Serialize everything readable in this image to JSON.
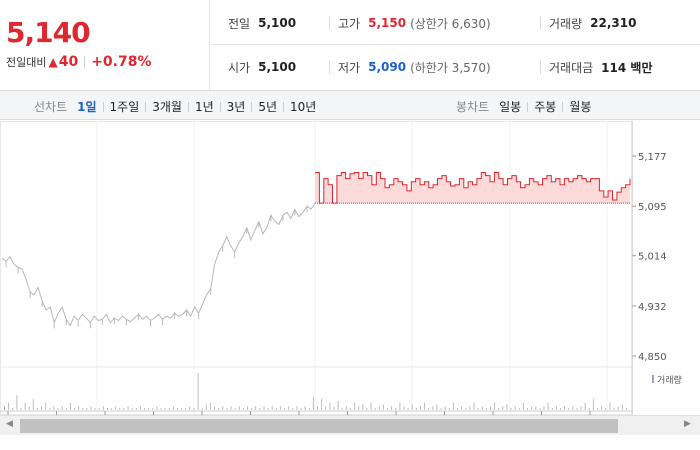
{
  "quote": {
    "price": "5,140",
    "change_label": "전일대비",
    "change_arrow": "▲",
    "change_amount": "40",
    "change_rate": "+0.78%"
  },
  "stats": {
    "prev_close": {
      "label": "전일",
      "value": "5,100"
    },
    "high": {
      "label": "고가",
      "value": "5,150",
      "extra": "(상한가 6,630)"
    },
    "volume": {
      "label": "거래량",
      "value": "22,310"
    },
    "open": {
      "label": "시가",
      "value": "5,100"
    },
    "low": {
      "label": "저가",
      "value": "5,090",
      "extra": "(하한가 3,570)"
    },
    "amount": {
      "label": "거래대금",
      "value": "114 백만"
    }
  },
  "toolbar": {
    "line_title": "선차트",
    "line_items": [
      "1일",
      "1주일",
      "3개월",
      "1년",
      "3년",
      "5년",
      "10년"
    ],
    "active_index": 0,
    "candle_title": "봉차트",
    "candle_items": [
      "일봉",
      "주봉",
      "월봉"
    ]
  },
  "colors": {
    "up": "#e0262f",
    "down": "#1963c7",
    "line_gray": "#b8b8b8",
    "fill_up": "#fbdada",
    "volume": "#a89bd0"
  },
  "chart_data": {
    "type": "line",
    "ylim": [
      4850,
      5177
    ],
    "y_ticks": [
      "5,177",
      "5,095",
      "5,014",
      "4,932",
      "4,850"
    ],
    "y_tick_values": [
      5177,
      5095,
      5014,
      4932,
      4850
    ],
    "base_price": 5100,
    "volume_legend": "거래량",
    "series_before_open": [
      5010,
      5005,
      5012,
      5000,
      4995,
      4992,
      4975,
      4955,
      4950,
      4962,
      4940,
      4925,
      4930,
      4905,
      4920,
      4930,
      4910,
      4900,
      4915,
      4908,
      4918,
      4912,
      4905,
      4915,
      4908,
      4910,
      4918,
      4905,
      4912,
      4908,
      4915,
      4910,
      4906,
      4912,
      4918,
      4910,
      4915,
      4908,
      4912,
      4918,
      4910,
      4915,
      4912,
      4920,
      4915,
      4918,
      4925,
      4915,
      4930,
      4920,
      4935,
      4950,
      4960,
      5000,
      5020,
      5030,
      5045,
      5030,
      5020,
      5035,
      5045,
      5060,
      5040,
      5055,
      5070,
      5050,
      5060,
      5080,
      5070,
      5065,
      5080,
      5085,
      5075,
      5090,
      5078,
      5085,
      5095,
      5090,
      5100
    ],
    "series_after_open": [
      5150,
      5100,
      5140,
      5130,
      5100,
      5145,
      5150,
      5140,
      5148,
      5150,
      5140,
      5150,
      5145,
      5130,
      5150,
      5140,
      5125,
      5130,
      5140,
      5135,
      5130,
      5120,
      5135,
      5140,
      5130,
      5135,
      5125,
      5130,
      5140,
      5145,
      5135,
      5128,
      5130,
      5140,
      5125,
      5135,
      5130,
      5140,
      5150,
      5145,
      5135,
      5150,
      5140,
      5130,
      5140,
      5145,
      5135,
      5125,
      5130,
      5140,
      5135,
      5130,
      5140,
      5145,
      5135,
      5140,
      5130,
      5140,
      5135,
      5140,
      5145,
      5140,
      5135,
      5140,
      5140,
      5120,
      5110,
      5120,
      5105,
      5118,
      5125,
      5130,
      5140
    ],
    "volume_rel": [
      0.1,
      0.2,
      0.05,
      0.4,
      0.05,
      0.2,
      0.1,
      0.3,
      0.05,
      0.1,
      0.2,
      0.05,
      0.1,
      0.05,
      0.1,
      0.05,
      0.2,
      0.05,
      0.1,
      0.05,
      0.05,
      0.1,
      0.05,
      0.05,
      0.1,
      0.05,
      0.05,
      0.1,
      0.05,
      0.05,
      0.1,
      0.05,
      0.05,
      0.1,
      0.05,
      0.05,
      0.05,
      0.1,
      0.05,
      0.05,
      0.05,
      0.1,
      0.05,
      0.05,
      0.05,
      0.1,
      0.05,
      1.0,
      0.05,
      0.15,
      0.2,
      0.1,
      0.05,
      0.1,
      0.05,
      0.1,
      0.05,
      0.1,
      0.05,
      0.1,
      0.05,
      0.1,
      0.05,
      0.1,
      0.05,
      0.1,
      0.05,
      0.1,
      0.05,
      0.1,
      0.05,
      0.1,
      0.05,
      0.1,
      0.05,
      0.35,
      0.1,
      0.3,
      0.1,
      0.2,
      0.1,
      0.25,
      0.05,
      0.1,
      0.05,
      0.2,
      0.1,
      0.15,
      0.05,
      0.2,
      0.05,
      0.1,
      0.15,
      0.05,
      0.1,
      0.05,
      0.2,
      0.1,
      0.05,
      0.15,
      0.05,
      0.1,
      0.2,
      0.05,
      0.1,
      0.15,
      0.05,
      0.1,
      0.05,
      0.2,
      0.05,
      0.1,
      0.05,
      0.1,
      0.2,
      0.05,
      0.1,
      0.05,
      0.1,
      0.2,
      0.05,
      0.1,
      0.15,
      0.05,
      0.1,
      0.05,
      0.2,
      0.05,
      0.1,
      0.1,
      0.05,
      0.1,
      0.2,
      0.05,
      0.1,
      0.05,
      0.1,
      0.05,
      0.1,
      0.05,
      0.1,
      0.2,
      0.05,
      0.3,
      0.05,
      0.1,
      0.05,
      0.2,
      0.05,
      0.1,
      0.15,
      0.05
    ]
  }
}
